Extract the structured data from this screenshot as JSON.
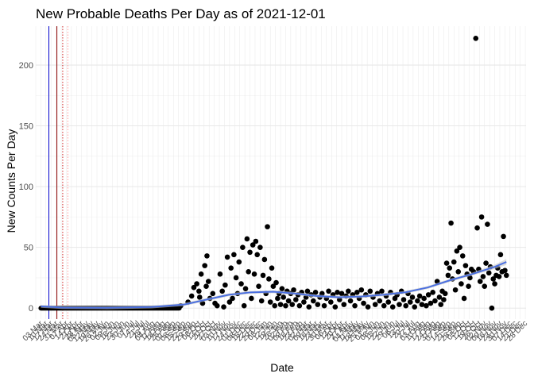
{
  "chart_data": {
    "type": "scatter",
    "title": "New Probable Deaths Per Day as of 2021-12-01",
    "xlabel": "Date",
    "ylabel": "New Counts Per Day",
    "x_range": [
      "2020-02-24",
      "2021-12-28"
    ],
    "ylim": [
      -9,
      232
    ],
    "y_ticks": [
      0,
      50,
      100,
      150,
      200
    ],
    "x_tick_labels": [
      "03 Mar",
      "10 Mar",
      "17 Mar",
      "24 Mar",
      "31 Mar",
      "07 Apr",
      "14 Apr",
      "21 Apr",
      "28 Apr",
      "05 May",
      "12 May",
      "19 May",
      "26 May",
      "02 Jun",
      "09 Jun",
      "16 Jun",
      "23 Jun",
      "30 Jun",
      "07 Jul",
      "14 Jul",
      "21 Jul",
      "28 Jul",
      "04 Aug",
      "11 Aug",
      "18 Aug",
      "25 Aug",
      "01 Sep",
      "08 Sep",
      "15 Sep",
      "22 Sep",
      "29 Sep",
      "06 Oct",
      "13 Oct",
      "20 Oct",
      "27 Oct",
      "03 Nov",
      "10 Nov",
      "17 Nov",
      "24 Nov",
      "01 Dec",
      "08 Dec",
      "15 Dec",
      "22 Dec",
      "29 Dec",
      "05 Jan",
      "12 Jan",
      "19 Jan",
      "26 Jan",
      "02 Feb",
      "09 Feb",
      "16 Feb",
      "23 Feb",
      "02 Mar",
      "09 Mar",
      "16 Mar",
      "23 Mar",
      "30 Mar",
      "06 Apr",
      "13 Apr",
      "20 Apr",
      "27 Apr",
      "04 May",
      "11 May",
      "18 May",
      "25 May",
      "01 Jun",
      "08 Jun",
      "15 Jun",
      "22 Jun",
      "29 Jun",
      "06 Jul",
      "13 Jul",
      "20 Jul",
      "27 Jul",
      "03 Aug",
      "10 Aug",
      "17 Aug",
      "24 Aug",
      "31 Aug",
      "07 Sep",
      "14 Sep",
      "21 Sep",
      "28 Sep",
      "05 Oct",
      "12 Oct",
      "19 Oct",
      "26 Oct",
      "02 Nov",
      "09 Nov",
      "16 Nov",
      "23 Nov",
      "30 Nov",
      "07 Dec",
      "14 Dec",
      "21 Dec",
      "28 Dec"
    ],
    "grid": true,
    "reference_lines": [
      {
        "date": "2020-03-13",
        "color": "#0000cc",
        "style": "solid"
      },
      {
        "date": "2020-03-24",
        "color": "#8b0000",
        "style": "solid"
      },
      {
        "date": "2020-04-01",
        "color": "#cc2222",
        "style": "dotted"
      },
      {
        "date": "2020-04-08",
        "color": "#ff9999",
        "style": "dotted"
      }
    ],
    "trend": [
      {
        "date": "2020-03-02",
        "y": 1.5
      },
      {
        "date": "2020-04-01",
        "y": 0.5
      },
      {
        "date": "2020-06-01",
        "y": 0.3
      },
      {
        "date": "2020-08-01",
        "y": 1
      },
      {
        "date": "2020-09-15",
        "y": 3
      },
      {
        "date": "2020-10-15",
        "y": 7
      },
      {
        "date": "2020-11-15",
        "y": 11
      },
      {
        "date": "2020-12-15",
        "y": 13
      },
      {
        "date": "2021-01-15",
        "y": 13.5
      },
      {
        "date": "2021-02-15",
        "y": 12
      },
      {
        "date": "2021-03-15",
        "y": 10
      },
      {
        "date": "2021-04-15",
        "y": 9
      },
      {
        "date": "2021-05-15",
        "y": 9.5
      },
      {
        "date": "2021-06-15",
        "y": 11
      },
      {
        "date": "2021-07-15",
        "y": 13
      },
      {
        "date": "2021-08-15",
        "y": 17
      },
      {
        "date": "2021-09-15",
        "y": 23
      },
      {
        "date": "2021-10-15",
        "y": 28
      },
      {
        "date": "2021-11-15",
        "y": 34
      },
      {
        "date": "2021-12-01",
        "y": 38
      }
    ],
    "point_color": "#000000",
    "trend_color": "#4a6fe0",
    "band_color": "#c8c8c8",
    "points": [
      {
        "date": "2020-09-10",
        "y": 2
      },
      {
        "date": "2020-09-20",
        "y": 5
      },
      {
        "date": "2020-09-25",
        "y": 10
      },
      {
        "date": "2020-09-28",
        "y": 17
      },
      {
        "date": "2020-10-02",
        "y": 20
      },
      {
        "date": "2020-10-05",
        "y": 14
      },
      {
        "date": "2020-10-06",
        "y": 9
      },
      {
        "date": "2020-10-08",
        "y": 28
      },
      {
        "date": "2020-10-10",
        "y": 4
      },
      {
        "date": "2020-10-13",
        "y": 35
      },
      {
        "date": "2020-10-15",
        "y": 18
      },
      {
        "date": "2020-10-16",
        "y": 43
      },
      {
        "date": "2020-10-18",
        "y": 22
      },
      {
        "date": "2020-10-20",
        "y": 8
      },
      {
        "date": "2020-10-24",
        "y": 12
      },
      {
        "date": "2020-10-27",
        "y": 4
      },
      {
        "date": "2020-10-30",
        "y": 2
      },
      {
        "date": "2020-11-03",
        "y": 28
      },
      {
        "date": "2020-11-06",
        "y": 14
      },
      {
        "date": "2020-11-08",
        "y": 1
      },
      {
        "date": "2020-11-10",
        "y": 19
      },
      {
        "date": "2020-11-13",
        "y": 42
      },
      {
        "date": "2020-11-16",
        "y": 5
      },
      {
        "date": "2020-11-18",
        "y": 33
      },
      {
        "date": "2020-11-20",
        "y": 8
      },
      {
        "date": "2020-11-22",
        "y": 44
      },
      {
        "date": "2020-11-25",
        "y": 25
      },
      {
        "date": "2020-11-27",
        "y": 12
      },
      {
        "date": "2020-11-29",
        "y": 38
      },
      {
        "date": "2020-12-02",
        "y": 20
      },
      {
        "date": "2020-12-04",
        "y": 50
      },
      {
        "date": "2020-12-06",
        "y": 2
      },
      {
        "date": "2020-12-08",
        "y": 16
      },
      {
        "date": "2020-12-10",
        "y": 57
      },
      {
        "date": "2020-12-12",
        "y": 30
      },
      {
        "date": "2020-12-14",
        "y": 46
      },
      {
        "date": "2020-12-16",
        "y": 8
      },
      {
        "date": "2020-12-18",
        "y": 52
      },
      {
        "date": "2020-12-20",
        "y": 28
      },
      {
        "date": "2020-12-22",
        "y": 55
      },
      {
        "date": "2020-12-24",
        "y": 44
      },
      {
        "date": "2020-12-26",
        "y": 18
      },
      {
        "date": "2020-12-28",
        "y": 50
      },
      {
        "date": "2020-12-30",
        "y": 6
      },
      {
        "date": "2021-01-01",
        "y": 27
      },
      {
        "date": "2021-01-03",
        "y": 40
      },
      {
        "date": "2021-01-05",
        "y": 12
      },
      {
        "date": "2021-01-07",
        "y": 67
      },
      {
        "date": "2021-01-09",
        "y": 24
      },
      {
        "date": "2021-01-11",
        "y": 5
      },
      {
        "date": "2021-01-13",
        "y": 33
      },
      {
        "date": "2021-01-15",
        "y": 18
      },
      {
        "date": "2021-01-17",
        "y": 2
      },
      {
        "date": "2021-01-19",
        "y": 21
      },
      {
        "date": "2021-01-21",
        "y": 8
      },
      {
        "date": "2021-01-23",
        "y": 12
      },
      {
        "date": "2021-01-25",
        "y": 3
      },
      {
        "date": "2021-01-27",
        "y": 16
      },
      {
        "date": "2021-01-29",
        "y": 9
      },
      {
        "date": "2021-02-01",
        "y": 2
      },
      {
        "date": "2021-02-03",
        "y": 14
      },
      {
        "date": "2021-02-05",
        "y": 6
      },
      {
        "date": "2021-02-08",
        "y": 12
      },
      {
        "date": "2021-02-10",
        "y": 3
      },
      {
        "date": "2021-02-12",
        "y": 15
      },
      {
        "date": "2021-02-15",
        "y": 7
      },
      {
        "date": "2021-02-18",
        "y": 11
      },
      {
        "date": "2021-02-20",
        "y": 2
      },
      {
        "date": "2021-02-23",
        "y": 13
      },
      {
        "date": "2021-02-26",
        "y": 5
      },
      {
        "date": "2021-03-01",
        "y": 9
      },
      {
        "date": "2021-03-03",
        "y": 14
      },
      {
        "date": "2021-03-05",
        "y": 1
      },
      {
        "date": "2021-03-08",
        "y": 11
      },
      {
        "date": "2021-03-11",
        "y": 6
      },
      {
        "date": "2021-03-14",
        "y": 13
      },
      {
        "date": "2021-03-17",
        "y": 3
      },
      {
        "date": "2021-03-20",
        "y": 9
      },
      {
        "date": "2021-03-23",
        "y": 12
      },
      {
        "date": "2021-03-26",
        "y": 2
      },
      {
        "date": "2021-03-29",
        "y": 8
      },
      {
        "date": "2021-04-01",
        "y": 14
      },
      {
        "date": "2021-04-04",
        "y": 5
      },
      {
        "date": "2021-04-07",
        "y": 11
      },
      {
        "date": "2021-04-10",
        "y": 1
      },
      {
        "date": "2021-04-13",
        "y": 13
      },
      {
        "date": "2021-04-16",
        "y": 7
      },
      {
        "date": "2021-04-19",
        "y": 12
      },
      {
        "date": "2021-04-22",
        "y": 3
      },
      {
        "date": "2021-04-25",
        "y": 10
      },
      {
        "date": "2021-04-28",
        "y": 14
      },
      {
        "date": "2021-05-01",
        "y": 6
      },
      {
        "date": "2021-05-04",
        "y": 11
      },
      {
        "date": "2021-05-07",
        "y": 2
      },
      {
        "date": "2021-05-10",
        "y": 13
      },
      {
        "date": "2021-05-13",
        "y": 8
      },
      {
        "date": "2021-05-16",
        "y": 15
      },
      {
        "date": "2021-05-19",
        "y": 4
      },
      {
        "date": "2021-05-22",
        "y": 11
      },
      {
        "date": "2021-05-25",
        "y": 1
      },
      {
        "date": "2021-05-28",
        "y": 14
      },
      {
        "date": "2021-06-01",
        "y": 9
      },
      {
        "date": "2021-06-04",
        "y": 3
      },
      {
        "date": "2021-06-07",
        "y": 12
      },
      {
        "date": "2021-06-10",
        "y": 6
      },
      {
        "date": "2021-06-13",
        "y": 14
      },
      {
        "date": "2021-06-16",
        "y": 2
      },
      {
        "date": "2021-06-19",
        "y": 10
      },
      {
        "date": "2021-06-22",
        "y": 5
      },
      {
        "date": "2021-06-25",
        "y": 13
      },
      {
        "date": "2021-06-28",
        "y": 1
      },
      {
        "date": "2021-07-01",
        "y": 8
      },
      {
        "date": "2021-07-04",
        "y": 11
      },
      {
        "date": "2021-07-07",
        "y": 3
      },
      {
        "date": "2021-07-10",
        "y": 14
      },
      {
        "date": "2021-07-13",
        "y": 7
      },
      {
        "date": "2021-07-16",
        "y": 2
      },
      {
        "date": "2021-07-19",
        "y": 12
      },
      {
        "date": "2021-07-22",
        "y": 5
      },
      {
        "date": "2021-07-25",
        "y": 9
      },
      {
        "date": "2021-07-28",
        "y": 1
      },
      {
        "date": "2021-08-01",
        "y": 6
      },
      {
        "date": "2021-08-04",
        "y": 10
      },
      {
        "date": "2021-08-07",
        "y": 3
      },
      {
        "date": "2021-08-10",
        "y": 8
      },
      {
        "date": "2021-08-13",
        "y": 2
      },
      {
        "date": "2021-08-16",
        "y": 11
      },
      {
        "date": "2021-08-19",
        "y": 4
      },
      {
        "date": "2021-08-22",
        "y": 13
      },
      {
        "date": "2021-08-25",
        "y": 6
      },
      {
        "date": "2021-08-28",
        "y": 22
      },
      {
        "date": "2021-08-31",
        "y": 9
      },
      {
        "date": "2021-09-02",
        "y": 3
      },
      {
        "date": "2021-09-04",
        "y": 14
      },
      {
        "date": "2021-09-06",
        "y": 7
      },
      {
        "date": "2021-09-08",
        "y": 12
      },
      {
        "date": "2021-09-10",
        "y": 37
      },
      {
        "date": "2021-09-12",
        "y": 27
      },
      {
        "date": "2021-09-14",
        "y": 33
      },
      {
        "date": "2021-09-16",
        "y": 70
      },
      {
        "date": "2021-09-18",
        "y": 24
      },
      {
        "date": "2021-09-20",
        "y": 38
      },
      {
        "date": "2021-09-22",
        "y": 15
      },
      {
        "date": "2021-09-24",
        "y": 47
      },
      {
        "date": "2021-09-26",
        "y": 30
      },
      {
        "date": "2021-09-28",
        "y": 50
      },
      {
        "date": "2021-09-30",
        "y": 20
      },
      {
        "date": "2021-10-02",
        "y": 43
      },
      {
        "date": "2021-10-04",
        "y": 8
      },
      {
        "date": "2021-10-06",
        "y": 35
      },
      {
        "date": "2021-10-08",
        "y": 28
      },
      {
        "date": "2021-10-10",
        "y": 18
      },
      {
        "date": "2021-10-12",
        "y": 25
      },
      {
        "date": "2021-10-14",
        "y": 32
      },
      {
        "date": "2021-10-17",
        "y": 30
      },
      {
        "date": "2021-10-20",
        "y": 222
      },
      {
        "date": "2021-10-22",
        "y": 66
      },
      {
        "date": "2021-10-24",
        "y": 32
      },
      {
        "date": "2021-10-26",
        "y": 22
      },
      {
        "date": "2021-10-28",
        "y": 75
      },
      {
        "date": "2021-10-30",
        "y": 26
      },
      {
        "date": "2021-11-01",
        "y": 18
      },
      {
        "date": "2021-11-03",
        "y": 37
      },
      {
        "date": "2021-11-05",
        "y": 69
      },
      {
        "date": "2021-11-07",
        "y": 29
      },
      {
        "date": "2021-11-09",
        "y": 34
      },
      {
        "date": "2021-11-11",
        "y": 0
      },
      {
        "date": "2021-11-13",
        "y": 24
      },
      {
        "date": "2021-11-15",
        "y": 20
      },
      {
        "date": "2021-11-17",
        "y": 27
      },
      {
        "date": "2021-11-19",
        "y": 33
      },
      {
        "date": "2021-11-21",
        "y": 26
      },
      {
        "date": "2021-11-23",
        "y": 44
      },
      {
        "date": "2021-11-25",
        "y": 30
      },
      {
        "date": "2021-11-27",
        "y": 59
      },
      {
        "date": "2021-11-29",
        "y": 31
      },
      {
        "date": "2021-12-01",
        "y": 27
      }
    ],
    "baseline_points": {
      "from": "2020-03-02",
      "to": "2020-09-08",
      "every_days": 1,
      "y": 0
    }
  }
}
